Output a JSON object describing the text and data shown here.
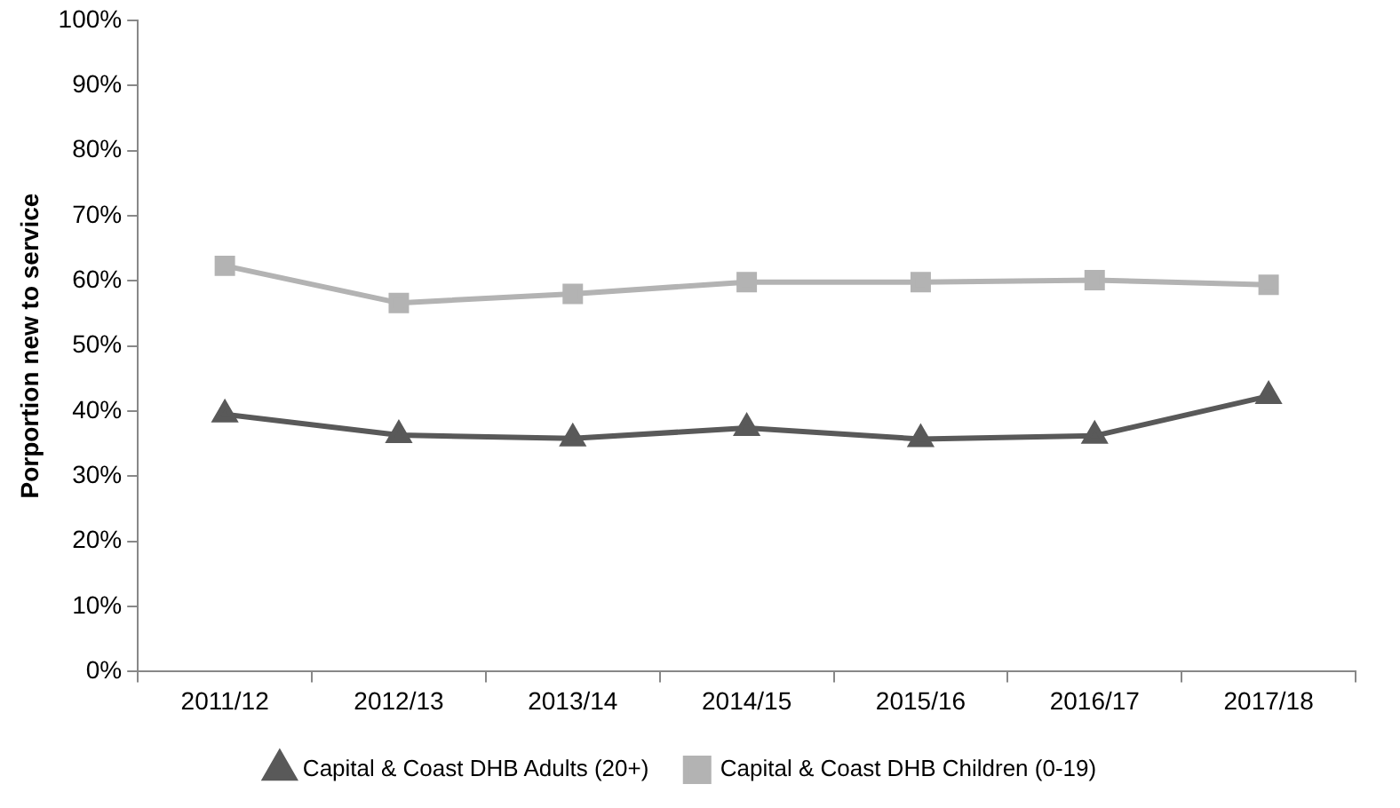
{
  "chart_data": {
    "type": "line",
    "ylabel": "Porportion new to service",
    "categories": [
      "2011/12",
      "2012/13",
      "2013/14",
      "2014/15",
      "2015/16",
      "2016/17",
      "2017/18"
    ],
    "series": [
      {
        "name": "Capital & Coast DHB Adults (20+)",
        "color": "#595959",
        "marker": "triangle",
        "values": [
          39.5,
          36.3,
          35.8,
          37.4,
          35.7,
          36.2,
          42.3
        ]
      },
      {
        "name": "Capital & Coast DHB Children (0-19)",
        "color": "#b3b3b3",
        "marker": "square",
        "values": [
          62.3,
          56.6,
          58.0,
          59.8,
          59.8,
          60.1,
          59.4
        ]
      }
    ],
    "ylim": [
      0,
      100
    ],
    "yticks": [
      {
        "value": 0,
        "label": "0%"
      },
      {
        "value": 10,
        "label": "10%"
      },
      {
        "value": 20,
        "label": "20%"
      },
      {
        "value": 30,
        "label": "30%"
      },
      {
        "value": 40,
        "label": "40%"
      },
      {
        "value": 50,
        "label": "50%"
      },
      {
        "value": 60,
        "label": "60%"
      },
      {
        "value": 70,
        "label": "70%"
      },
      {
        "value": 80,
        "label": "80%"
      },
      {
        "value": 90,
        "label": "90%"
      },
      {
        "value": 100,
        "label": "100%"
      }
    ],
    "grid": false,
    "legend": "bottom",
    "line_style": "solid"
  }
}
